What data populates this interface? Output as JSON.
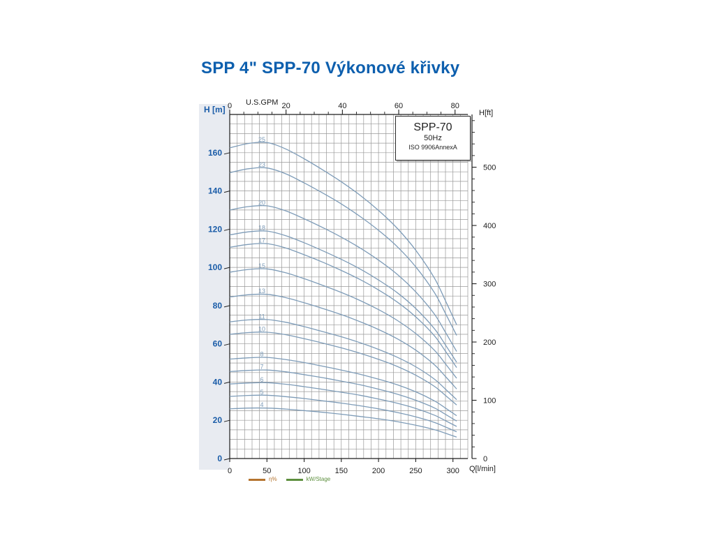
{
  "title": "SPP 4\" SPP-70 Výkonové křivky",
  "legend_box": {
    "model": "SPP-70",
    "frequency": "50Hz",
    "standard": "ISO 9906AnnexA"
  },
  "axes_labels": {
    "left": "H [m]",
    "right": "H[ft]",
    "top": "U.S.GPM",
    "bottom": "Q[l/min]"
  },
  "bottom_legend": {
    "efficiency_label": "η%",
    "efficiency_color": "#b5742f",
    "power_label": "kW/Stage",
    "power_color": "#5d8f3e"
  },
  "colors": {
    "title_blue": "#0d5fae",
    "axis_label_blue": "#1a5ca8",
    "curve": "#7e9cb8",
    "grid": "#989898",
    "axis": "#1c1c1c",
    "band": "#e8ebf1"
  },
  "chart_data": {
    "type": "line",
    "title": "SPP-70 50Hz ISO 9906AnnexA",
    "xlabel": "Q[l/min]",
    "xlabel_secondary": "U.S.GPM",
    "ylabel": "H [m]",
    "ylabel_secondary": "H[ft]",
    "x_range_lmin": [
      0,
      320
    ],
    "y_range_m": [
      0,
      180
    ],
    "grid": {
      "x_step_lmin": 10,
      "y_step_m": 5
    },
    "x_ticks_lmin": [
      0,
      50,
      100,
      150,
      200,
      250,
      300
    ],
    "x_ticks_gpm": [
      0,
      20,
      40,
      60,
      80
    ],
    "y_ticks_m": [
      0,
      20,
      40,
      60,
      80,
      100,
      120,
      140,
      160
    ],
    "y_ticks_ft": [
      0,
      100,
      200,
      300,
      400,
      500
    ],
    "series_note": "curve labels = number of pump stages, head H[m] vs flow Q[l/min]",
    "x": [
      0,
      25,
      50,
      75,
      100,
      125,
      150,
      175,
      200,
      225,
      250,
      275,
      290,
      305
    ],
    "series": [
      {
        "name": "4",
        "values": [
          26.0,
          26.4,
          26.4,
          25.9,
          25.1,
          24.2,
          23.2,
          22.0,
          20.8,
          19.3,
          17.4,
          15.1,
          13.2,
          11.2
        ]
      },
      {
        "name": "5",
        "values": [
          32.5,
          33.0,
          33.1,
          32.4,
          31.4,
          30.2,
          29.0,
          27.6,
          26.0,
          24.1,
          21.8,
          18.9,
          16.5,
          14.0
        ]
      },
      {
        "name": "6",
        "values": [
          39.0,
          39.5,
          39.7,
          38.9,
          37.6,
          36.2,
          34.7,
          33.1,
          31.1,
          28.9,
          26.2,
          22.7,
          19.8,
          16.8
        ]
      },
      {
        "name": "7",
        "values": [
          45.5,
          46.1,
          46.3,
          45.4,
          43.9,
          42.3,
          40.5,
          38.6,
          36.3,
          33.7,
          30.5,
          26.5,
          23.1,
          19.6
        ]
      },
      {
        "name": "8",
        "values": [
          52.0,
          52.7,
          52.9,
          51.8,
          50.2,
          48.3,
          46.3,
          44.1,
          41.5,
          38.6,
          34.9,
          30.2,
          26.4,
          22.4
        ]
      },
      {
        "name": "10",
        "values": [
          65.0,
          65.9,
          66.1,
          64.8,
          62.7,
          60.4,
          57.9,
          55.1,
          51.9,
          48.2,
          43.6,
          37.8,
          33.0,
          28.0
        ]
      },
      {
        "name": "11",
        "values": [
          71.5,
          72.5,
          72.7,
          71.3,
          69.0,
          66.4,
          63.7,
          60.6,
          57.1,
          53.0,
          48.0,
          41.6,
          36.3,
          30.8
        ]
      },
      {
        "name": "13",
        "values": [
          84.5,
          85.7,
          85.9,
          84.2,
          81.5,
          78.5,
          75.3,
          71.6,
          67.5,
          62.7,
          56.7,
          49.1,
          42.9,
          36.4
        ]
      },
      {
        "name": "15",
        "values": [
          97.5,
          98.9,
          99.2,
          97.2,
          94.1,
          90.6,
          86.9,
          82.7,
          77.9,
          72.3,
          65.4,
          56.7,
          49.5,
          42.0
        ]
      },
      {
        "name": "17",
        "values": [
          110.5,
          112.0,
          112.4,
          110.2,
          106.6,
          102.7,
          98.4,
          93.7,
          88.2,
          81.9,
          74.1,
          64.3,
          56.1,
          47.6
        ]
      },
      {
        "name": "18",
        "values": [
          117.0,
          118.6,
          119.0,
          116.6,
          112.9,
          108.7,
          104.2,
          99.2,
          93.4,
          86.8,
          78.5,
          68.0,
          59.4,
          50.4
        ]
      },
      {
        "name": "20",
        "values": [
          130.0,
          131.8,
          132.2,
          129.6,
          125.4,
          120.8,
          115.8,
          110.2,
          103.8,
          96.4,
          87.2,
          75.6,
          66.0,
          56.0
        ]
      },
      {
        "name": "23",
        "values": [
          149.5,
          151.6,
          152.0,
          149.0,
          144.2,
          138.9,
          133.2,
          126.7,
          119.4,
          110.9,
          100.3,
          86.9,
          75.9,
          64.4
        ]
      },
      {
        "name": "25",
        "values": [
          162.5,
          164.8,
          165.3,
          162.0,
          156.8,
          151.0,
          144.8,
          137.8,
          129.8,
          120.5,
          109.0,
          94.5,
          82.5,
          70.0
        ]
      }
    ]
  }
}
